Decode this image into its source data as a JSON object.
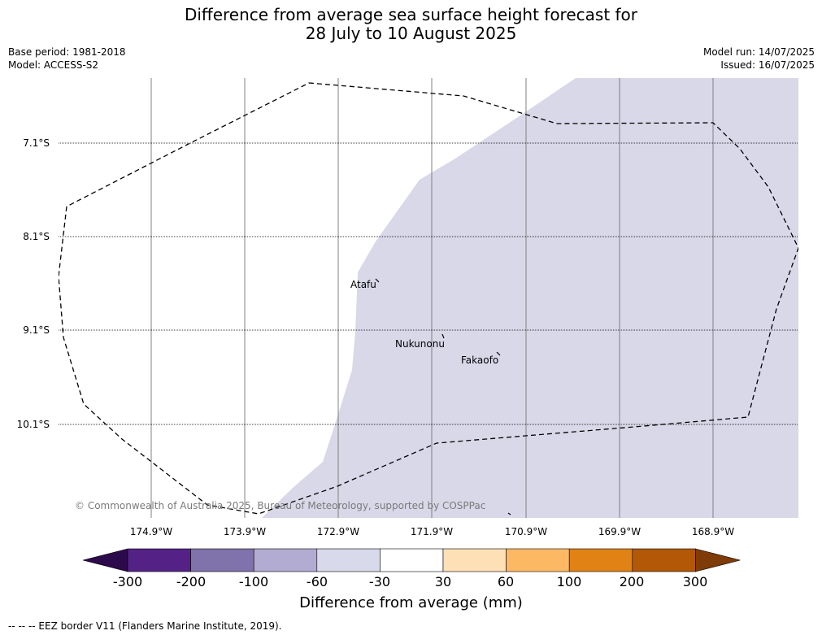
{
  "title": {
    "line1": "Difference from average sea surface height forecast for",
    "line2": "28 July to 10 August 2025"
  },
  "meta": {
    "base_period": "Base period: 1981-2018",
    "model": "Model: ACCESS-S2",
    "model_run": "Model run: 14/07/2025",
    "issued": "Issued: 16/07/2025"
  },
  "map": {
    "latitude_labels": [
      "7.1°S",
      "8.1°S",
      "9.1°S",
      "10.1°S"
    ],
    "longitude_labels": [
      "174.9°W",
      "173.9°W",
      "172.9°W",
      "171.9°W",
      "170.9°W",
      "169.9°W",
      "168.9°W"
    ],
    "places": [
      "Atafu",
      "Nukunonu",
      "Fakaofo"
    ],
    "shading_category": "-60 to -30",
    "shading_color": "#d8d8e9",
    "copyright": "© Commonwealth of Australia 2025, Bureau of Meteorology, supported by COSPPac"
  },
  "colorbar": {
    "title": "Difference from average (mm)",
    "ticks": [
      "-300",
      "-200",
      "-100",
      "-60",
      "-30",
      "30",
      "60",
      "100",
      "200",
      "300"
    ],
    "colors": [
      "#2d0a4b",
      "#542287",
      "#8073ac",
      "#b2abd2",
      "#d8daeb",
      "#ffffff",
      "#fee0b6",
      "#fdb863",
      "#e08214",
      "#b35806",
      "#7f3b08"
    ]
  },
  "footer": {
    "legend": "--  --  -- EEZ border V11 (Flanders Marine Institute, 2019)."
  }
}
